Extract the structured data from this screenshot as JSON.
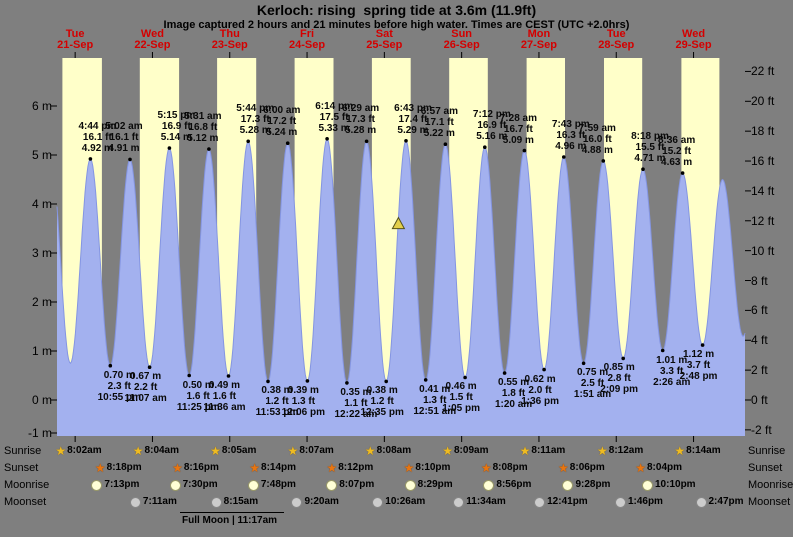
{
  "meta": {
    "title": "Kerloch: rising  spring tide at 3.6m (11.9ft)",
    "subtitle": "Image captured 2 hours and 21 minutes before high water. Times are CEST (UTC +2.0hrs)"
  },
  "colors": {
    "background": "#7f7f7f",
    "day_band": "#ffffc9",
    "tide_fill": "#a3b1ef",
    "tide_stroke": "#8495e2",
    "date_red": "#d40000",
    "marker_fill": "#e3cf4b"
  },
  "icons": {
    "star_glyph": "★"
  },
  "days": [
    {
      "name": "Tue",
      "date": "21-Sep"
    },
    {
      "name": "Wed",
      "date": "22-Sep"
    },
    {
      "name": "Thu",
      "date": "23-Sep"
    },
    {
      "name": "Fri",
      "date": "24-Sep"
    },
    {
      "name": "Sat",
      "date": "25-Sep"
    },
    {
      "name": "Sun",
      "date": "26-Sep"
    },
    {
      "name": "Mon",
      "date": "27-Sep"
    },
    {
      "name": "Tue",
      "date": "28-Sep"
    },
    {
      "name": "Wed",
      "date": "29-Sep"
    }
  ],
  "y_axis_left": {
    "unit": "m",
    "ticks": [
      {
        "label": "6 m",
        "value": 6
      },
      {
        "label": "5 m",
        "value": 5
      },
      {
        "label": "4 m",
        "value": 4
      },
      {
        "label": "3 m",
        "value": 3
      },
      {
        "label": "2 m",
        "value": 2
      },
      {
        "label": "1 m",
        "value": 1
      },
      {
        "label": "0 m",
        "value": 0
      },
      {
        "label": "-1 m",
        "value": -1
      }
    ]
  },
  "y_axis_right": {
    "unit": "ft",
    "ticks": [
      {
        "label": "22 ft",
        "value": 22
      },
      {
        "label": "20 ft",
        "value": 20
      },
      {
        "label": "18 ft",
        "value": 18
      },
      {
        "label": "16 ft",
        "value": 16
      },
      {
        "label": "14 ft",
        "value": 14
      },
      {
        "label": "12 ft",
        "value": 12
      },
      {
        "label": "10 ft",
        "value": 10
      },
      {
        "label": "8 ft",
        "value": 8
      },
      {
        "label": "6 ft",
        "value": 6
      },
      {
        "label": "4 ft",
        "value": 4
      },
      {
        "label": "2 ft",
        "value": 2
      },
      {
        "label": "0 ft",
        "value": 0
      },
      {
        "label": "-2 ft",
        "value": -2
      }
    ]
  },
  "chart_data": {
    "type": "area",
    "title": "Kerloch: rising  spring tide at 3.6m (11.9ft)",
    "series": "tide height",
    "x_axis": "hours from Tue 21-Sep 00:00 (CEST)",
    "ylabel_left": "meters",
    "ylabel_right": "feet",
    "ylim_m": [
      -0.7,
      6.9
    ],
    "high_tides": [
      {
        "time": "4:44 pm",
        "ft": "16.1 ft",
        "m": "4.92 m",
        "t": 16.73,
        "h": 4.92
      },
      {
        "time": "5:02 am",
        "ft": "16.1 ft",
        "m": "4.91 m",
        "t": 29.03,
        "h": 4.91
      },
      {
        "time": "5:15 pm",
        "ft": "16.9 ft",
        "m": "5.14 m",
        "t": 41.25,
        "h": 5.14
      },
      {
        "time": "5:31 am",
        "ft": "16.8 ft",
        "m": "5.12 m",
        "t": 53.52,
        "h": 5.12
      },
      {
        "time": "5:44 pm",
        "ft": "17.3 ft",
        "m": "5.28 m",
        "t": 65.73,
        "h": 5.28
      },
      {
        "time": "6:00 am",
        "ft": "17.2 ft",
        "m": "5.24 m",
        "t": 78.0,
        "h": 5.24
      },
      {
        "time": "6:14 pm",
        "ft": "17.5 ft",
        "m": "5.33 m",
        "t": 90.23,
        "h": 5.33
      },
      {
        "time": "6:29 am",
        "ft": "17.3 ft",
        "m": "5.28 m",
        "t": 102.48,
        "h": 5.28
      },
      {
        "time": "6:43 pm",
        "ft": "17.4 ft",
        "m": "5.29 m",
        "t": 114.72,
        "h": 5.29
      },
      {
        "time": "6:57 am",
        "ft": "17.1 ft",
        "m": "5.22 m",
        "t": 126.95,
        "h": 5.22
      },
      {
        "time": "7:12 pm",
        "ft": "16.9 ft",
        "m": "5.16 m",
        "t": 139.2,
        "h": 5.16
      },
      {
        "time": "7:28 am",
        "ft": "16.7 ft",
        "m": "5.09 m",
        "t": 151.47,
        "h": 5.09
      },
      {
        "time": "7:43 pm",
        "ft": "16.3 ft",
        "m": "4.96 m",
        "t": 163.72,
        "h": 4.96
      },
      {
        "time": "7:59 am",
        "ft": "16.0 ft",
        "m": "4.88 m",
        "t": 175.98,
        "h": 4.88
      },
      {
        "time": "8:18 pm",
        "ft": "15.5 ft",
        "m": "4.71 m",
        "t": 188.3,
        "h": 4.71
      },
      {
        "time": "8:36 am",
        "ft": "15.2 ft",
        "m": "4.63 m",
        "t": 200.6,
        "h": 4.63
      }
    ],
    "low_tides": [
      {
        "m": "0.70 m",
        "ft": "2.3 ft",
        "time": "10:55 pm",
        "t": 22.92,
        "h": 0.7
      },
      {
        "m": "0.67 m",
        "ft": "2.2 ft",
        "time": "11:07 am",
        "t": 35.12,
        "h": 0.67
      },
      {
        "m": "0.50 m",
        "ft": "1.6 ft",
        "time": "11:25 pm",
        "t": 47.42,
        "h": 0.5
      },
      {
        "m": "0.49 m",
        "ft": "1.6 ft",
        "time": "11:36 am",
        "t": 59.6,
        "h": 0.49
      },
      {
        "m": "0.38 m",
        "ft": "1.2 ft",
        "time": "11:53 pm",
        "t": 71.88,
        "h": 0.38
      },
      {
        "m": "0.39 m",
        "ft": "1.3 ft",
        "time": "12:06 pm",
        "t": 84.1,
        "h": 0.39
      },
      {
        "m": "0.35 m",
        "ft": "1.1 ft",
        "time": "12:22 am",
        "t": 96.37,
        "h": 0.35
      },
      {
        "m": "0.38 m",
        "ft": "1.2 ft",
        "time": "12:35 pm",
        "t": 108.58,
        "h": 0.38
      },
      {
        "m": "0.41 m",
        "ft": "1.3 ft",
        "time": "12:51 am",
        "t": 120.85,
        "h": 0.41
      },
      {
        "m": "0.46 m",
        "ft": "1.5 ft",
        "time": "1:05 pm",
        "t": 133.08,
        "h": 0.46
      },
      {
        "m": "0.55 m",
        "ft": "1.8 ft",
        "time": "1:20 am",
        "t": 145.33,
        "h": 0.55
      },
      {
        "m": "0.62 m",
        "ft": "2.0 ft",
        "time": "1:36 pm",
        "t": 157.6,
        "h": 0.62
      },
      {
        "m": "0.75 m",
        "ft": "2.5 ft",
        "time": "1:51 am",
        "t": 169.85,
        "h": 0.75
      },
      {
        "m": "0.85 m",
        "ft": "2.8 ft",
        "time": "2:09 pm",
        "t": 182.15,
        "h": 0.85
      },
      {
        "m": "1.01 m",
        "ft": "3.3 ft",
        "time": "2:26 am",
        "t": 194.43,
        "h": 1.01
      },
      {
        "m": "1.12 m",
        "ft": "3.7 ft",
        "time": "2:48 pm",
        "t": 206.8,
        "h": 1.12
      }
    ],
    "curve_padding": {
      "lead": [
        {
          "t": 4.5,
          "h": 4.85
        },
        {
          "t": 10.5,
          "h": 0.75
        }
      ],
      "trail": [
        {
          "t": 213.0,
          "h": 4.5
        },
        {
          "t": 219.4,
          "h": 1.3
        },
        {
          "t": 225.6,
          "h": 4.4
        }
      ]
    },
    "marker": {
      "t": 112.37,
      "h": 3.6,
      "label": "current tide level 3.6m (11.9ft), rising"
    }
  },
  "astro": {
    "rows": [
      {
        "key": "sunrise",
        "label": "Sunrise",
        "entries": [
          {
            "time": "8:02am",
            "t": 8.03
          },
          {
            "time": "8:04am",
            "t": 32.07
          },
          {
            "time": "8:05am",
            "t": 56.08
          },
          {
            "time": "8:07am",
            "t": 80.12
          },
          {
            "time": "8:08am",
            "t": 104.13
          },
          {
            "time": "8:09am",
            "t": 128.15
          },
          {
            "time": "8:11am",
            "t": 152.18
          },
          {
            "time": "8:12am",
            "t": 176.2
          },
          {
            "time": "8:14am",
            "t": 200.23
          }
        ]
      },
      {
        "key": "sunset",
        "label": "Sunset",
        "entries": [
          {
            "time": "8:18pm",
            "t": 20.3
          },
          {
            "time": "8:16pm",
            "t": 44.27
          },
          {
            "time": "8:14pm",
            "t": 68.23
          },
          {
            "time": "8:12pm",
            "t": 92.2
          },
          {
            "time": "8:10pm",
            "t": 116.17
          },
          {
            "time": "8:08pm",
            "t": 140.13
          },
          {
            "time": "8:06pm",
            "t": 164.1
          },
          {
            "time": "8:04pm",
            "t": 188.07
          }
        ]
      },
      {
        "key": "moonrise",
        "label": "Moonrise",
        "entries": [
          {
            "time": "7:13pm",
            "t": 19.22
          },
          {
            "time": "7:30pm",
            "t": 43.5
          },
          {
            "time": "7:48pm",
            "t": 67.8
          },
          {
            "time": "8:07pm",
            "t": 92.12
          },
          {
            "time": "8:29pm",
            "t": 116.48
          },
          {
            "time": "8:56pm",
            "t": 140.93
          },
          {
            "time": "9:28pm",
            "t": 165.47
          },
          {
            "time": "10:10pm",
            "t": 190.17
          }
        ]
      },
      {
        "key": "moonset",
        "label": "Moonset",
        "entries": [
          {
            "time": "7:11am",
            "t": 31.18
          },
          {
            "time": "8:15am",
            "t": 56.25
          },
          {
            "time": "9:20am",
            "t": 81.33
          },
          {
            "time": "10:26am",
            "t": 106.43
          },
          {
            "time": "11:34am",
            "t": 131.57
          },
          {
            "time": "12:41pm",
            "t": 156.68
          },
          {
            "time": "1:46pm",
            "t": 181.77
          },
          {
            "time": "2:47pm",
            "t": 206.78
          }
        ]
      }
    ],
    "moon_phase": "Full Moon | 11:17am"
  }
}
